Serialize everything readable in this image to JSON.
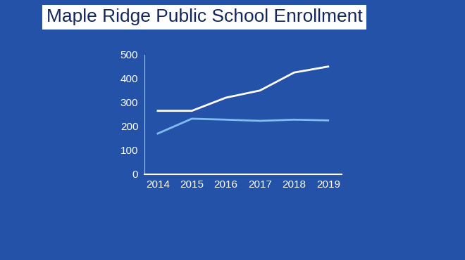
{
  "chart_data": {
    "type": "line",
    "title": "Maple Ridge Public School Enrollment",
    "categories": [
      "2014",
      "2015",
      "2016",
      "2017",
      "2018",
      "2019"
    ],
    "series": [
      {
        "color": "#ffffff",
        "values": [
          265,
          265,
          320,
          350,
          425,
          450
        ]
      },
      {
        "color": "#7fbcf0",
        "values": [
          170,
          232,
          228,
          223,
          228,
          225
        ]
      }
    ],
    "ylim": [
      0,
      500
    ],
    "yticks": [
      0,
      100,
      200,
      300,
      400,
      500
    ],
    "grid": false
  }
}
